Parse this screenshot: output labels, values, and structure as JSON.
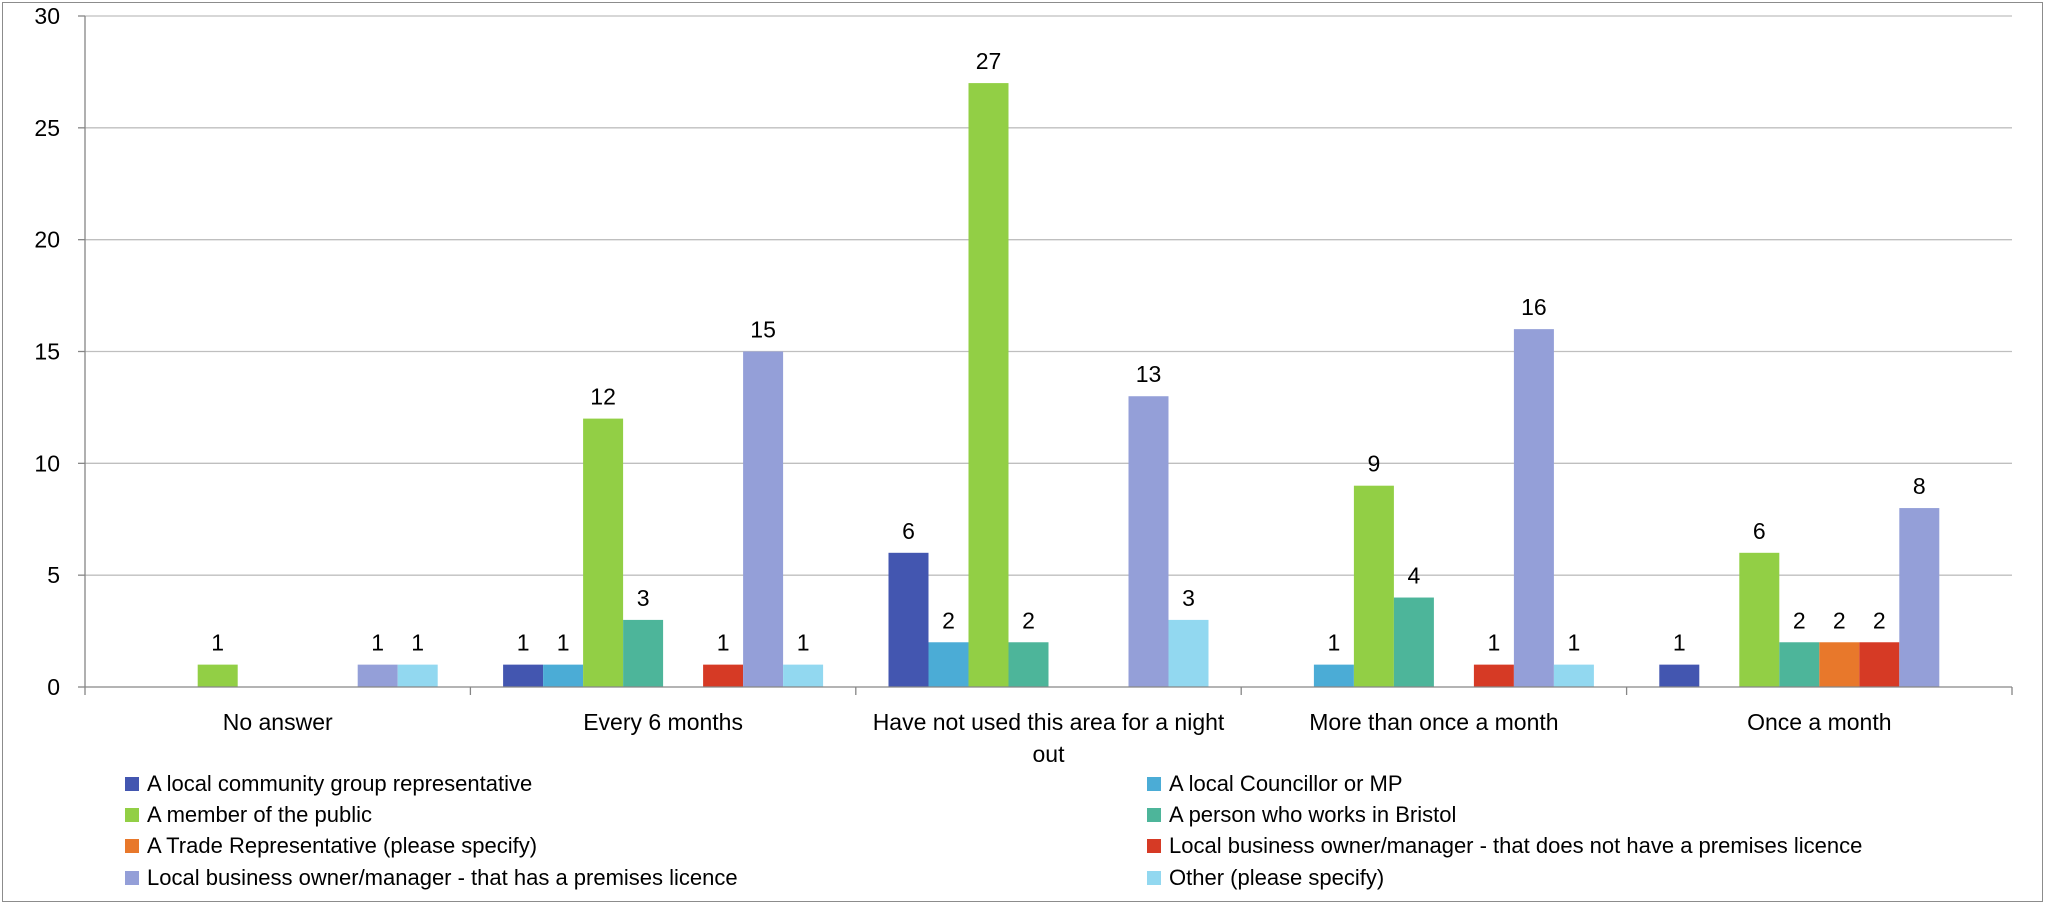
{
  "chart_data": {
    "type": "bar",
    "title": "",
    "xlabel": "",
    "ylabel": "",
    "ylim": [
      0,
      30
    ],
    "yticks": [
      0,
      5,
      10,
      15,
      20,
      25,
      30
    ],
    "grid": true,
    "legend_position": "bottom",
    "categories": [
      [
        "No answer"
      ],
      [
        "Every 6 months"
      ],
      [
        "Have not used this area for a night",
        "out"
      ],
      [
        "More than once a month"
      ],
      [
        "Once a month"
      ]
    ],
    "series": [
      {
        "name": "A local community group representative",
        "color": "#4356b0",
        "values": [
          0,
          1,
          6,
          0,
          1
        ]
      },
      {
        "name": "A local Councillor or MP",
        "color": "#4bacd6",
        "values": [
          0,
          1,
          2,
          1,
          0
        ]
      },
      {
        "name": "A member of the public",
        "color": "#92cf45",
        "values": [
          1,
          12,
          27,
          9,
          6
        ]
      },
      {
        "name": "A person who works in Bristol",
        "color": "#4db59a",
        "values": [
          0,
          3,
          2,
          4,
          2
        ]
      },
      {
        "name": "A Trade Representative (please specify)",
        "color": "#e8782b",
        "values": [
          0,
          0,
          0,
          0,
          2
        ]
      },
      {
        "name": "Local business owner/manager - that does not have a premises licence",
        "color": "#d63a25",
        "values": [
          0,
          1,
          0,
          1,
          2
        ]
      },
      {
        "name": "Local business owner/manager - that has a premises licence",
        "color": "#949fd8",
        "values": [
          1,
          15,
          13,
          16,
          8
        ]
      },
      {
        "name": "Other (please specify)",
        "color": "#92d8f0",
        "values": [
          1,
          1,
          3,
          1,
          0
        ]
      }
    ]
  }
}
